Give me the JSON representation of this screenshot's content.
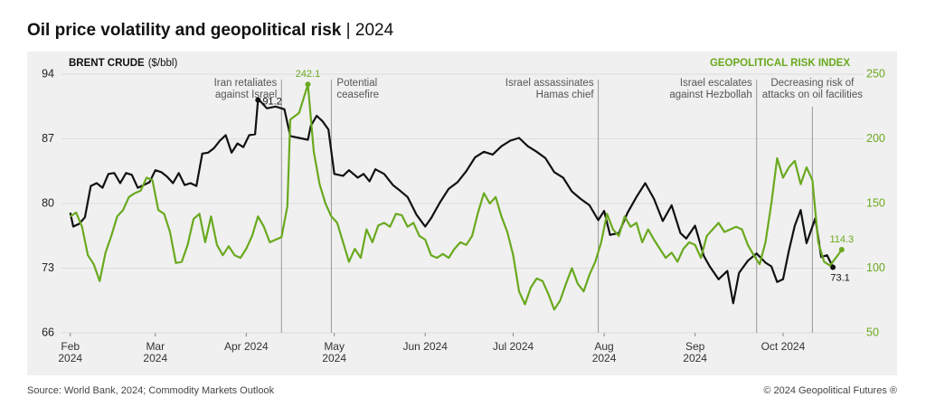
{
  "chart_data": {
    "type": "line",
    "title": "Oil price volatility and geopolitical risk",
    "title_suffix": "| 2024",
    "source": "Source: World Bank, 2024; Commodity Markets Outlook",
    "copyright": "© 2024 Geopolitical Futures ®",
    "ylabel": "($/bbl)",
    "xlim": [
      -3,
      272
    ],
    "xticks": [
      {
        "value": 0,
        "label": "Feb 2024"
      },
      {
        "value": 29,
        "label": "Mar 2024"
      },
      {
        "value": 60,
        "label": "Apr 2024"
      },
      {
        "value": 90,
        "label": "May 2024"
      },
      {
        "value": 121,
        "label": "Jun 2024"
      },
      {
        "value": 151,
        "label": "Jul 2024"
      },
      {
        "value": 182,
        "label": "Aug 2024"
      },
      {
        "value": 213,
        "label": "Sep 2024"
      },
      {
        "value": 243,
        "label": "Oct 2024"
      }
    ],
    "ylim": [
      66,
      94
    ],
    "yticks": [
      94,
      87,
      80,
      73,
      66
    ],
    "y2lim": [
      50,
      250
    ],
    "y2ticks": [
      250,
      200,
      150,
      100,
      50
    ],
    "grid": true,
    "annotations": [
      {
        "x": 72,
        "lines": [
          "Iran retaliates",
          "against Israel"
        ]
      },
      {
        "x": 89,
        "lines": [
          "Potential",
          "ceasefire"
        ]
      },
      {
        "x": 180,
        "lines": [
          "Israel assassinates",
          "Hamas chief"
        ]
      },
      {
        "x": 234,
        "lines": [
          "Israel escalates",
          "against Hezbollah"
        ]
      },
      {
        "x": 253,
        "lines": [
          "Decreasing risk of",
          "attacks on oil facilities"
        ]
      }
    ],
    "series": [
      {
        "name": "BRENT CRUDE",
        "color": "#111111",
        "axis": "y",
        "x": [
          0,
          1,
          3,
          5,
          7,
          9,
          11,
          13,
          15,
          17,
          19,
          21,
          23,
          25,
          27,
          29,
          31,
          33,
          35,
          37,
          39,
          41,
          43,
          45,
          47,
          49,
          51,
          53,
          55,
          57,
          59,
          61,
          63,
          64,
          65,
          67,
          70,
          73,
          75,
          78,
          81,
          82,
          84,
          86,
          88,
          90,
          93,
          95,
          98,
          100,
          102,
          104,
          107,
          110,
          112,
          115,
          118,
          121,
          123,
          126,
          129,
          132,
          135,
          138,
          141,
          144,
          147,
          150,
          153,
          156,
          159,
          162,
          165,
          168,
          171,
          174,
          177,
          180,
          182,
          184,
          187,
          190,
          193,
          196,
          199,
          202,
          205,
          208,
          210,
          213,
          216,
          218,
          221,
          224,
          226,
          228,
          231,
          234,
          237,
          239,
          241,
          243,
          245,
          247,
          249,
          251,
          254,
          256,
          258,
          260
        ],
        "values": [
          79,
          77.5,
          77.8,
          78.5,
          81.9,
          82.2,
          81.7,
          83.2,
          83.3,
          82.2,
          83.3,
          83.1,
          81.7,
          82,
          82.3,
          83.6,
          83.4,
          82.9,
          82.2,
          83.3,
          82,
          82.2,
          81.9,
          85.4,
          85.5,
          86,
          86.8,
          87.4,
          85.5,
          86.5,
          86.1,
          87.4,
          87.5,
          91.2,
          91,
          90.3,
          90.5,
          90.2,
          87.3,
          87.1,
          86.9,
          88.4,
          89.5,
          88.9,
          88,
          83.2,
          83,
          83.6,
          82.8,
          83.2,
          82.4,
          83.7,
          83.2,
          82,
          81.5,
          80.7,
          78.8,
          77.5,
          78.4,
          80.1,
          81.6,
          82.3,
          83.5,
          85,
          85.6,
          85.3,
          86.2,
          86.8,
          87.1,
          86.2,
          85.6,
          84.9,
          83.4,
          82.8,
          81.3,
          80.5,
          79.8,
          78.2,
          79.2,
          76.6,
          76.8,
          79,
          80.7,
          82.2,
          80.5,
          78.1,
          79.8,
          76.8,
          76.2,
          77.6,
          74.3,
          73.2,
          71.8,
          72.7,
          69.2,
          72.5,
          73.8,
          74.6,
          73.6,
          73.2,
          71.5,
          71.8,
          74.9,
          77.6,
          79.3,
          75.7,
          78.4,
          74.2,
          74.4,
          73.1
        ]
      },
      {
        "name": "GEOPOLITICAL RISK INDEX",
        "color": "#6aa91f",
        "axis": "y2",
        "x": [
          0,
          2,
          4,
          6,
          8,
          10,
          12,
          14,
          16,
          18,
          20,
          22,
          24,
          26,
          28,
          30,
          32,
          34,
          36,
          38,
          40,
          42,
          44,
          46,
          48,
          50,
          52,
          54,
          56,
          58,
          60,
          62,
          64,
          66,
          68,
          70,
          72,
          74,
          75,
          78,
          81,
          83,
          85,
          87,
          89,
          91,
          93,
          95,
          97,
          99,
          101,
          103,
          105,
          107,
          109,
          111,
          113,
          115,
          117,
          119,
          121,
          123,
          125,
          127,
          129,
          131,
          133,
          135,
          137,
          139,
          141,
          143,
          145,
          147,
          149,
          151,
          153,
          155,
          157,
          159,
          161,
          163,
          165,
          167,
          169,
          171,
          173,
          175,
          177,
          179,
          181,
          183,
          185,
          187,
          189,
          191,
          193,
          195,
          197,
          199,
          201,
          203,
          205,
          207,
          209,
          211,
          213,
          215,
          217,
          219,
          221,
          223,
          225,
          227,
          229,
          231,
          233,
          235,
          237,
          239,
          241,
          243,
          245,
          247,
          249,
          251,
          253,
          255,
          257,
          259,
          261,
          263
        ],
        "values": [
          140,
          143,
          132,
          110,
          103,
          90,
          112,
          125,
          140,
          145,
          155,
          158,
          160,
          170,
          168,
          145,
          142,
          128,
          104,
          105,
          118,
          138,
          142,
          120,
          140,
          118,
          110,
          117,
          110,
          108,
          115,
          125,
          140,
          132,
          120,
          122,
          124,
          148,
          215,
          220,
          242.1,
          190,
          165,
          150,
          140,
          135,
          120,
          105,
          115,
          108,
          130,
          120,
          133,
          135,
          132,
          142,
          141,
          132,
          135,
          125,
          122,
          110,
          108,
          111,
          108,
          115,
          120,
          118,
          125,
          143,
          158,
          150,
          155,
          140,
          128,
          110,
          82,
          72,
          85,
          92,
          90,
          80,
          68,
          75,
          88,
          100,
          88,
          82,
          95,
          105,
          120,
          142,
          130,
          125,
          140,
          132,
          135,
          120,
          130,
          122,
          115,
          108,
          112,
          105,
          115,
          120,
          118,
          108,
          125,
          130,
          135,
          128,
          130,
          132,
          130,
          118,
          110,
          103,
          120,
          150,
          185,
          170,
          178,
          183,
          165,
          178,
          168,
          120,
          105,
          102,
          108,
          114.3
        ]
      }
    ]
  }
}
